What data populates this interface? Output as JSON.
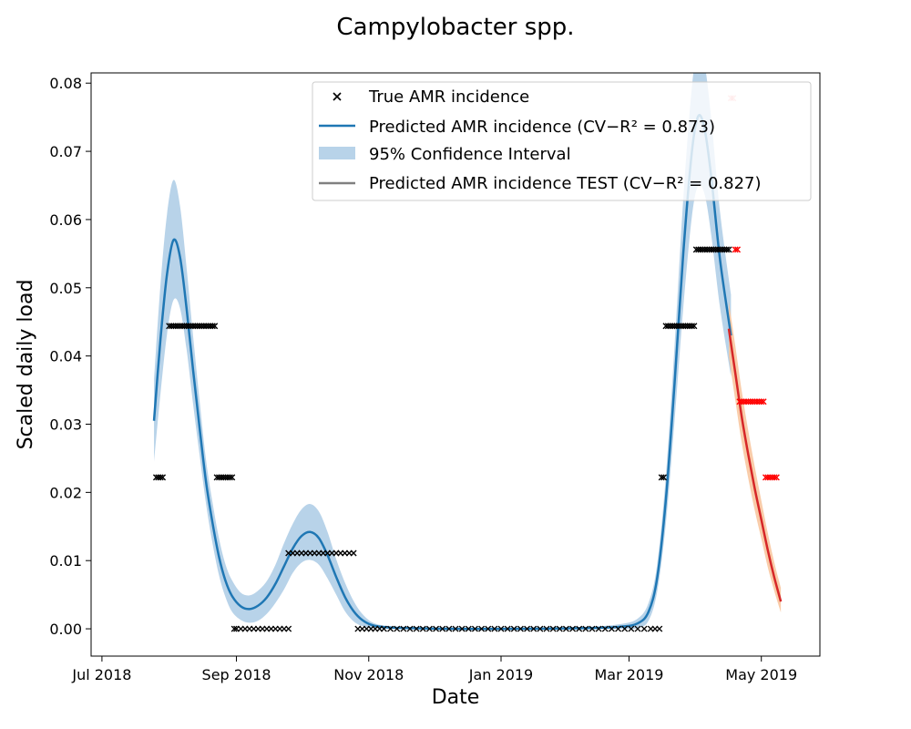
{
  "chart_data": {
    "type": "line",
    "title": "Campylobacter spp.",
    "xlabel": "Date",
    "ylabel": "Scaled daily load",
    "xlim": [
      "2018-06-26",
      "2019-05-28"
    ],
    "ylim": [
      -0.004,
      0.0815
    ],
    "x_ticks": [
      {
        "date": "2018-07-01",
        "label": "Jul 2018"
      },
      {
        "date": "2018-09-01",
        "label": "Sep 2018"
      },
      {
        "date": "2018-11-01",
        "label": "Nov 2018"
      },
      {
        "date": "2019-01-01",
        "label": "Jan 2019"
      },
      {
        "date": "2019-03-01",
        "label": "Mar 2019"
      },
      {
        "date": "2019-05-01",
        "label": "May 2019"
      }
    ],
    "y_ticks": [
      0,
      0.01,
      0.02,
      0.03,
      0.04,
      0.05,
      0.06,
      0.07,
      0.08
    ],
    "y_tick_labels": [
      "0.00",
      "0.01",
      "0.02",
      "0.03",
      "0.04",
      "0.05",
      "0.06",
      "0.07",
      "0.08"
    ],
    "legend_position": "top-right",
    "legend": [
      {
        "label": "True AMR incidence",
        "kind": "marker"
      },
      {
        "label": "Predicted AMR incidence (CV−R² = 0.873)",
        "kind": "line"
      },
      {
        "label": "95% Confidence Interval",
        "kind": "patch"
      },
      {
        "label": "Predicted AMR incidence TEST (CV−R² = 0.827)",
        "kind": "line-gray"
      }
    ],
    "colors": {
      "train_line": "#1f77b4",
      "train_band": "#a6c8e4",
      "test_line": "#d62728",
      "test_band": "#f8c39a",
      "true_marker": "#000000",
      "test_marker": "#ff0000",
      "legend_test_line": "#808080"
    },
    "series": [
      {
        "name": "True AMR incidence",
        "role": "true_train",
        "points": [
          [
            "2018-07-26",
            0.0222
          ],
          [
            "2018-07-27",
            0.0222
          ],
          [
            "2018-07-28",
            0.0222
          ],
          [
            "2018-07-29",
            0.0222
          ],
          [
            "2018-08-01",
            0.0444
          ],
          [
            "2018-08-02",
            0.0444
          ],
          [
            "2018-08-03",
            0.0444
          ],
          [
            "2018-08-04",
            0.0444
          ],
          [
            "2018-08-05",
            0.0444
          ],
          [
            "2018-08-06",
            0.0444
          ],
          [
            "2018-08-07",
            0.0444
          ],
          [
            "2018-08-08",
            0.0444
          ],
          [
            "2018-08-09",
            0.0444
          ],
          [
            "2018-08-10",
            0.0444
          ],
          [
            "2018-08-11",
            0.0444
          ],
          [
            "2018-08-12",
            0.0444
          ],
          [
            "2018-08-13",
            0.0444
          ],
          [
            "2018-08-14",
            0.0444
          ],
          [
            "2018-08-15",
            0.0444
          ],
          [
            "2018-08-16",
            0.0444
          ],
          [
            "2018-08-17",
            0.0444
          ],
          [
            "2018-08-18",
            0.0444
          ],
          [
            "2018-08-19",
            0.0444
          ],
          [
            "2018-08-20",
            0.0444
          ],
          [
            "2018-08-21",
            0.0444
          ],
          [
            "2018-08-22",
            0.0444
          ],
          [
            "2018-08-23",
            0.0222
          ],
          [
            "2018-08-24",
            0.0222
          ],
          [
            "2018-08-25",
            0.0222
          ],
          [
            "2018-08-26",
            0.0222
          ],
          [
            "2018-08-27",
            0.0222
          ],
          [
            "2018-08-28",
            0.0222
          ],
          [
            "2018-08-29",
            0.0222
          ],
          [
            "2018-08-30",
            0.0222
          ],
          [
            "2018-08-31",
            0.0
          ],
          [
            "2018-09-01",
            0.0
          ],
          [
            "2018-09-03",
            0.0
          ],
          [
            "2018-09-05",
            0.0
          ],
          [
            "2018-09-07",
            0.0
          ],
          [
            "2018-09-09",
            0.0
          ],
          [
            "2018-09-11",
            0.0
          ],
          [
            "2018-09-13",
            0.0
          ],
          [
            "2018-09-15",
            0.0
          ],
          [
            "2018-09-17",
            0.0
          ],
          [
            "2018-09-19",
            0.0
          ],
          [
            "2018-09-21",
            0.0
          ],
          [
            "2018-09-23",
            0.0
          ],
          [
            "2018-09-25",
            0.0
          ],
          [
            "2018-09-25",
            0.0111
          ],
          [
            "2018-09-27",
            0.0111
          ],
          [
            "2018-09-29",
            0.0111
          ],
          [
            "2018-10-01",
            0.0111
          ],
          [
            "2018-10-03",
            0.0111
          ],
          [
            "2018-10-05",
            0.0111
          ],
          [
            "2018-10-07",
            0.0111
          ],
          [
            "2018-10-09",
            0.0111
          ],
          [
            "2018-10-11",
            0.0111
          ],
          [
            "2018-10-13",
            0.0111
          ],
          [
            "2018-10-15",
            0.0111
          ],
          [
            "2018-10-17",
            0.0111
          ],
          [
            "2018-10-19",
            0.0111
          ],
          [
            "2018-10-21",
            0.0111
          ],
          [
            "2018-10-23",
            0.0111
          ],
          [
            "2018-10-25",
            0.0111
          ],
          [
            "2018-10-27",
            0.0
          ],
          [
            "2018-10-29",
            0.0
          ],
          [
            "2018-10-31",
            0.0
          ],
          [
            "2018-11-02",
            0.0
          ],
          [
            "2018-11-04",
            0.0
          ],
          [
            "2018-11-06",
            0.0
          ],
          [
            "2018-11-08",
            0.0
          ],
          [
            "2018-11-11",
            0.0
          ],
          [
            "2018-11-14",
            0.0
          ],
          [
            "2018-11-17",
            0.0
          ],
          [
            "2018-11-20",
            0.0
          ],
          [
            "2018-11-23",
            0.0
          ],
          [
            "2018-11-26",
            0.0
          ],
          [
            "2018-11-29",
            0.0
          ],
          [
            "2018-12-02",
            0.0
          ],
          [
            "2018-12-05",
            0.0
          ],
          [
            "2018-12-08",
            0.0
          ],
          [
            "2018-12-11",
            0.0
          ],
          [
            "2018-12-14",
            0.0
          ],
          [
            "2018-12-17",
            0.0
          ],
          [
            "2018-12-20",
            0.0
          ],
          [
            "2018-12-23",
            0.0
          ],
          [
            "2018-12-26",
            0.0
          ],
          [
            "2018-12-29",
            0.0
          ],
          [
            "2019-01-01",
            0.0
          ],
          [
            "2019-01-04",
            0.0
          ],
          [
            "2019-01-07",
            0.0
          ],
          [
            "2019-01-10",
            0.0
          ],
          [
            "2019-01-13",
            0.0
          ],
          [
            "2019-01-16",
            0.0
          ],
          [
            "2019-01-19",
            0.0
          ],
          [
            "2019-01-22",
            0.0
          ],
          [
            "2019-01-25",
            0.0
          ],
          [
            "2019-01-28",
            0.0
          ],
          [
            "2019-01-31",
            0.0
          ],
          [
            "2019-02-03",
            0.0
          ],
          [
            "2019-02-06",
            0.0
          ],
          [
            "2019-02-09",
            0.0
          ],
          [
            "2019-02-12",
            0.0
          ],
          [
            "2019-02-15",
            0.0
          ],
          [
            "2019-02-18",
            0.0
          ],
          [
            "2019-02-21",
            0.0
          ],
          [
            "2019-02-24",
            0.0
          ],
          [
            "2019-02-27",
            0.0
          ],
          [
            "2019-03-02",
            0.0
          ],
          [
            "2019-03-05",
            0.0
          ],
          [
            "2019-03-08",
            0.0
          ],
          [
            "2019-03-11",
            0.0
          ],
          [
            "2019-03-13",
            0.0
          ],
          [
            "2019-03-15",
            0.0
          ],
          [
            "2019-03-16",
            0.0222
          ],
          [
            "2019-03-17",
            0.0222
          ],
          [
            "2019-03-18",
            0.0444
          ],
          [
            "2019-03-19",
            0.0444
          ],
          [
            "2019-03-20",
            0.0444
          ],
          [
            "2019-03-21",
            0.0444
          ],
          [
            "2019-03-22",
            0.0444
          ],
          [
            "2019-03-23",
            0.0444
          ],
          [
            "2019-03-24",
            0.0444
          ],
          [
            "2019-03-25",
            0.0444
          ],
          [
            "2019-03-26",
            0.0444
          ],
          [
            "2019-03-27",
            0.0444
          ],
          [
            "2019-03-28",
            0.0444
          ],
          [
            "2019-03-29",
            0.0444
          ],
          [
            "2019-03-30",
            0.0444
          ],
          [
            "2019-03-31",
            0.0444
          ],
          [
            "2019-04-01",
            0.0556
          ],
          [
            "2019-04-02",
            0.0556
          ],
          [
            "2019-04-03",
            0.0556
          ],
          [
            "2019-04-04",
            0.0556
          ],
          [
            "2019-04-05",
            0.0556
          ],
          [
            "2019-04-06",
            0.0556
          ],
          [
            "2019-04-07",
            0.0556
          ],
          [
            "2019-04-08",
            0.0556
          ],
          [
            "2019-04-09",
            0.0556
          ],
          [
            "2019-04-10",
            0.0556
          ],
          [
            "2019-04-11",
            0.0556
          ],
          [
            "2019-04-12",
            0.0556
          ],
          [
            "2019-04-13",
            0.0556
          ],
          [
            "2019-04-14",
            0.0556
          ],
          [
            "2019-04-15",
            0.0556
          ],
          [
            "2019-04-16",
            0.0556
          ]
        ]
      },
      {
        "name": "True AMR incidence (test)",
        "role": "true_test",
        "points": [
          [
            "2019-04-17",
            0.0778
          ],
          [
            "2019-04-18",
            0.0778
          ],
          [
            "2019-04-19",
            0.0556
          ],
          [
            "2019-04-20",
            0.0556
          ],
          [
            "2019-04-21",
            0.0333
          ],
          [
            "2019-04-22",
            0.0333
          ],
          [
            "2019-04-23",
            0.0333
          ],
          [
            "2019-04-24",
            0.0333
          ],
          [
            "2019-04-25",
            0.0333
          ],
          [
            "2019-04-26",
            0.0333
          ],
          [
            "2019-04-27",
            0.0333
          ],
          [
            "2019-04-28",
            0.0333
          ],
          [
            "2019-04-29",
            0.0333
          ],
          [
            "2019-04-30",
            0.0333
          ],
          [
            "2019-05-01",
            0.0333
          ],
          [
            "2019-05-02",
            0.0333
          ],
          [
            "2019-05-03",
            0.0222
          ],
          [
            "2019-05-04",
            0.0222
          ],
          [
            "2019-05-05",
            0.0222
          ],
          [
            "2019-05-06",
            0.0222
          ],
          [
            "2019-05-07",
            0.0222
          ],
          [
            "2019-05-08",
            0.0222
          ]
        ]
      },
      {
        "name": "Predicted AMR incidence",
        "role": "pred_train",
        "points": [
          [
            "2018-07-25",
            0.0305
          ],
          [
            "2018-07-28",
            0.0425
          ],
          [
            "2018-07-31",
            0.052
          ],
          [
            "2018-08-03",
            0.057
          ],
          [
            "2018-08-06",
            0.0545
          ],
          [
            "2018-08-09",
            0.047
          ],
          [
            "2018-08-12",
            0.038
          ],
          [
            "2018-08-15",
            0.0295
          ],
          [
            "2018-08-18",
            0.0215
          ],
          [
            "2018-08-21",
            0.0155
          ],
          [
            "2018-08-24",
            0.0105
          ],
          [
            "2018-08-27",
            0.007
          ],
          [
            "2018-08-30",
            0.0048
          ],
          [
            "2018-09-03",
            0.0033
          ],
          [
            "2018-09-07",
            0.0029
          ],
          [
            "2018-09-11",
            0.0034
          ],
          [
            "2018-09-15",
            0.0046
          ],
          [
            "2018-09-19",
            0.0066
          ],
          [
            "2018-09-23",
            0.0092
          ],
          [
            "2018-09-27",
            0.0118
          ],
          [
            "2018-10-01",
            0.0136
          ],
          [
            "2018-10-05",
            0.0142
          ],
          [
            "2018-10-09",
            0.0133
          ],
          [
            "2018-10-13",
            0.0108
          ],
          [
            "2018-10-17",
            0.0076
          ],
          [
            "2018-10-21",
            0.0047
          ],
          [
            "2018-10-25",
            0.0026
          ],
          [
            "2018-10-29",
            0.0013
          ],
          [
            "2018-11-03",
            0.0005
          ],
          [
            "2018-11-10",
            0.0002
          ],
          [
            "2018-11-20",
            0.0001
          ],
          [
            "2018-12-10",
            0.0
          ],
          [
            "2019-01-10",
            0.0
          ],
          [
            "2019-02-10",
            0.0001
          ],
          [
            "2019-02-25",
            0.0003
          ],
          [
            "2019-03-05",
            0.0008
          ],
          [
            "2019-03-10",
            0.0025
          ],
          [
            "2019-03-14",
            0.0075
          ],
          [
            "2019-03-18",
            0.019
          ],
          [
            "2019-03-22",
            0.036
          ],
          [
            "2019-03-26",
            0.055
          ],
          [
            "2019-03-30",
            0.07
          ],
          [
            "2019-04-02",
            0.0752
          ],
          [
            "2019-04-05",
            0.073
          ],
          [
            "2019-04-08",
            0.066
          ],
          [
            "2019-04-12",
            0.054
          ],
          [
            "2019-04-17",
            0.043
          ]
        ],
        "ci_lower": [
          0.0245,
          0.0345,
          0.0432,
          0.0482,
          0.047,
          0.041,
          0.033,
          0.0255,
          0.0183,
          0.0125,
          0.0078,
          0.0046,
          0.0025,
          0.0013,
          0.0009,
          0.0012,
          0.0022,
          0.0038,
          0.0058,
          0.0082,
          0.0097,
          0.0101,
          0.0094,
          0.0074,
          0.005,
          0.0026,
          0.0011,
          0.0004,
          0.0001,
          0.0,
          0.0,
          0.0,
          0.0,
          0.0,
          0.0,
          0.0001,
          0.0012,
          0.0055,
          0.0155,
          0.0305,
          0.047,
          0.0605,
          0.065,
          0.0635,
          0.0575,
          0.047,
          0.037
        ],
        "ci_upper": [
          0.0365,
          0.0505,
          0.0608,
          0.0658,
          0.062,
          0.053,
          0.043,
          0.0335,
          0.0247,
          0.0185,
          0.0132,
          0.0094,
          0.0071,
          0.0053,
          0.0049,
          0.0056,
          0.007,
          0.0094,
          0.0126,
          0.0154,
          0.0175,
          0.0183,
          0.0172,
          0.0142,
          0.0102,
          0.0068,
          0.0041,
          0.0022,
          0.0009,
          0.0004,
          0.0002,
          0.0001,
          0.0001,
          0.0003,
          0.0007,
          0.0015,
          0.0038,
          0.0095,
          0.0225,
          0.0415,
          0.063,
          0.0795,
          0.0854,
          0.0825,
          0.0745,
          0.061,
          0.049
        ]
      },
      {
        "name": "Predicted AMR incidence TEST",
        "role": "pred_test",
        "points": [
          [
            "2019-04-16",
            0.044
          ],
          [
            "2019-04-19",
            0.0375
          ],
          [
            "2019-04-22",
            0.031
          ],
          [
            "2019-04-25",
            0.0255
          ],
          [
            "2019-04-28",
            0.0205
          ],
          [
            "2019-05-01",
            0.016
          ],
          [
            "2019-05-04",
            0.0115
          ],
          [
            "2019-05-07",
            0.0075
          ],
          [
            "2019-05-10",
            0.004
          ]
        ],
        "ci_lower": [
          0.04,
          0.0335,
          0.0272,
          0.022,
          0.0173,
          0.0132,
          0.009,
          0.0055,
          0.0024
        ],
        "ci_upper": [
          0.048,
          0.0415,
          0.0348,
          0.029,
          0.0237,
          0.0188,
          0.014,
          0.0097,
          0.006
        ]
      }
    ]
  }
}
